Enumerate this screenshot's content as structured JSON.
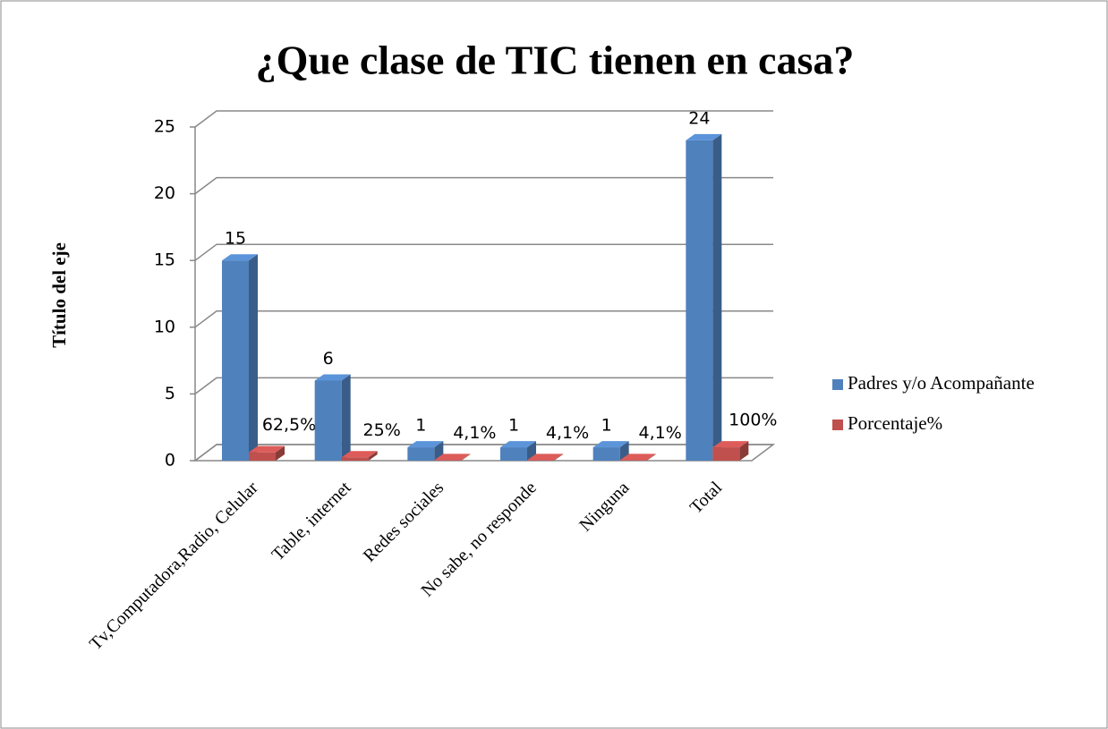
{
  "chart_data": {
    "type": "bar3d",
    "title": "¿Que clase de TIC tienen en casa?",
    "y_label": "Título del eje",
    "categories": [
      "Tv,Computadora,Radio, Celular",
      "Table, internet",
      "Redes sociales",
      "No sabe, no responde",
      "Ninguna",
      "Total"
    ],
    "series": [
      {
        "name": "Padres y/o Acompañante",
        "color": "#4f81bd",
        "values": [
          15,
          6,
          1,
          1,
          1,
          24
        ]
      },
      {
        "name": "Porcentaje%",
        "color": "#c0504d",
        "values": [
          0.625,
          0.25,
          0.041,
          0.041,
          0.041,
          1
        ],
        "value_labels": [
          "62,5%",
          "25%",
          "4,1%",
          "4,1%",
          "4,1%",
          "100%"
        ]
      }
    ],
    "ylim": [
      0,
      25
    ],
    "yticks": [
      0,
      5,
      10,
      15,
      20,
      25
    ],
    "grid": true,
    "legend": "right"
  }
}
